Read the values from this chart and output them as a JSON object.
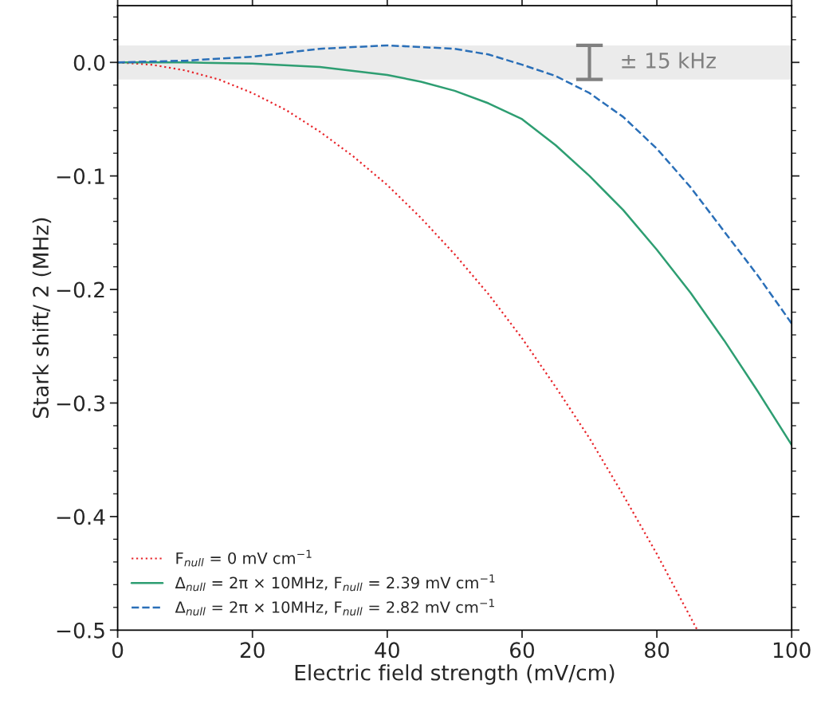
{
  "chart_data": {
    "type": "line",
    "xlabel": "Electric field strength (mV/cm)",
    "ylabel": "Stark shift/ 2 (MHz)",
    "xlim": [
      0,
      100
    ],
    "xticks": [
      0,
      20,
      40,
      60,
      80,
      100
    ],
    "ylim": [
      -0.5,
      0.05
    ],
    "yticks": [
      {
        "value": 0.0,
        "label": "0.0"
      },
      {
        "value": -0.1,
        "label": "−0.1"
      },
      {
        "value": -0.2,
        "label": "−0.2"
      },
      {
        "value": -0.3,
        "label": "−0.3"
      },
      {
        "value": -0.4,
        "label": "−0.4"
      },
      {
        "value": -0.5,
        "label": "−0.5"
      }
    ],
    "legend": "bottom left",
    "grid": false,
    "bands": [
      {
        "axis": "y",
        "from": -0.015,
        "to": 0.015,
        "label": "± 15 kHz",
        "color": "#ebebeb"
      }
    ],
    "series": [
      {
        "name": "F$_{null}$ = 0 mV cm$^{−1}$",
        "color": "#e8242a",
        "line_style": "dotted",
        "x": [
          0,
          5,
          10,
          15,
          20,
          25,
          30,
          35,
          40,
          45,
          50,
          55,
          60,
          65,
          70,
          75,
          80,
          86
        ],
        "values": [
          0,
          -0.002,
          -0.007,
          -0.015,
          -0.027,
          -0.042,
          -0.061,
          -0.083,
          -0.108,
          -0.137,
          -0.169,
          -0.204,
          -0.243,
          -0.286,
          -0.331,
          -0.381,
          -0.433,
          -0.5
        ]
      },
      {
        "name": "Δ$_{null}$ = 2π × 10MHz, F$_{null}$ = 2.39 mV cm$^{−1}$",
        "color": "#2e9e72",
        "line_style": "solid",
        "x": [
          0,
          10,
          20,
          30,
          40,
          45,
          50,
          55,
          60,
          65,
          70,
          75,
          80,
          85,
          90,
          95,
          100
        ],
        "values": [
          0,
          0,
          -0.001,
          -0.004,
          -0.011,
          -0.017,
          -0.025,
          -0.036,
          -0.05,
          -0.073,
          -0.1,
          -0.13,
          -0.165,
          -0.203,
          -0.245,
          -0.29,
          -0.337
        ]
      },
      {
        "name": "Δ$_{null}$ = 2π × 10MHz, F$_{null}$ = 2.82 mV cm$^{−1}$",
        "color": "#2a6fb8",
        "line_style": "dashed",
        "x": [
          0,
          10,
          20,
          30,
          40,
          50,
          55,
          60,
          65,
          70,
          75,
          80,
          85,
          90,
          95,
          100
        ],
        "values": [
          0,
          0.0015,
          0.005,
          0.012,
          0.015,
          0.012,
          0.007,
          -0.002,
          -0.012,
          -0.027,
          -0.048,
          -0.076,
          -0.11,
          -0.149,
          -0.188,
          -0.23
        ]
      }
    ]
  }
}
